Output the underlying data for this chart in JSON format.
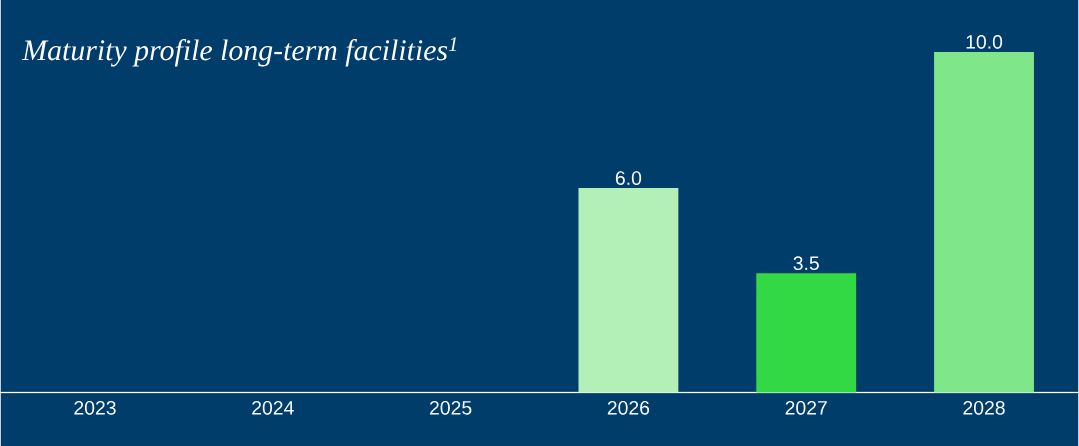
{
  "chart_data": {
    "type": "bar",
    "title": "Maturity profile long-term facilities$^{1}$",
    "categories": [
      "2023",
      "2024",
      "2025",
      "2026",
      "2027",
      "2028"
    ],
    "values": [
      null,
      null,
      null,
      6.0,
      3.5,
      10.0
    ],
    "colors": [
      "#b3f0b8",
      "#b3f0b8",
      "#b3f0b8",
      "#b3f0b8",
      "#33d944",
      "#80e68a"
    ],
    "value_labels": [
      null,
      null,
      null,
      "6.0",
      "3.5",
      "10.0"
    ]
  }
}
